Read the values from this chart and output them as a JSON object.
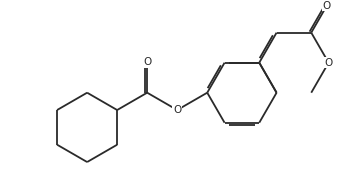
{
  "background_color": "#ffffff",
  "line_color": "#2a2a2a",
  "line_width": 1.3,
  "dbo": 0.055,
  "figsize": [
    3.59,
    1.87
  ],
  "dpi": 100,
  "xlim": [
    0.0,
    10.0
  ],
  "ylim": [
    0.0,
    5.2
  ]
}
